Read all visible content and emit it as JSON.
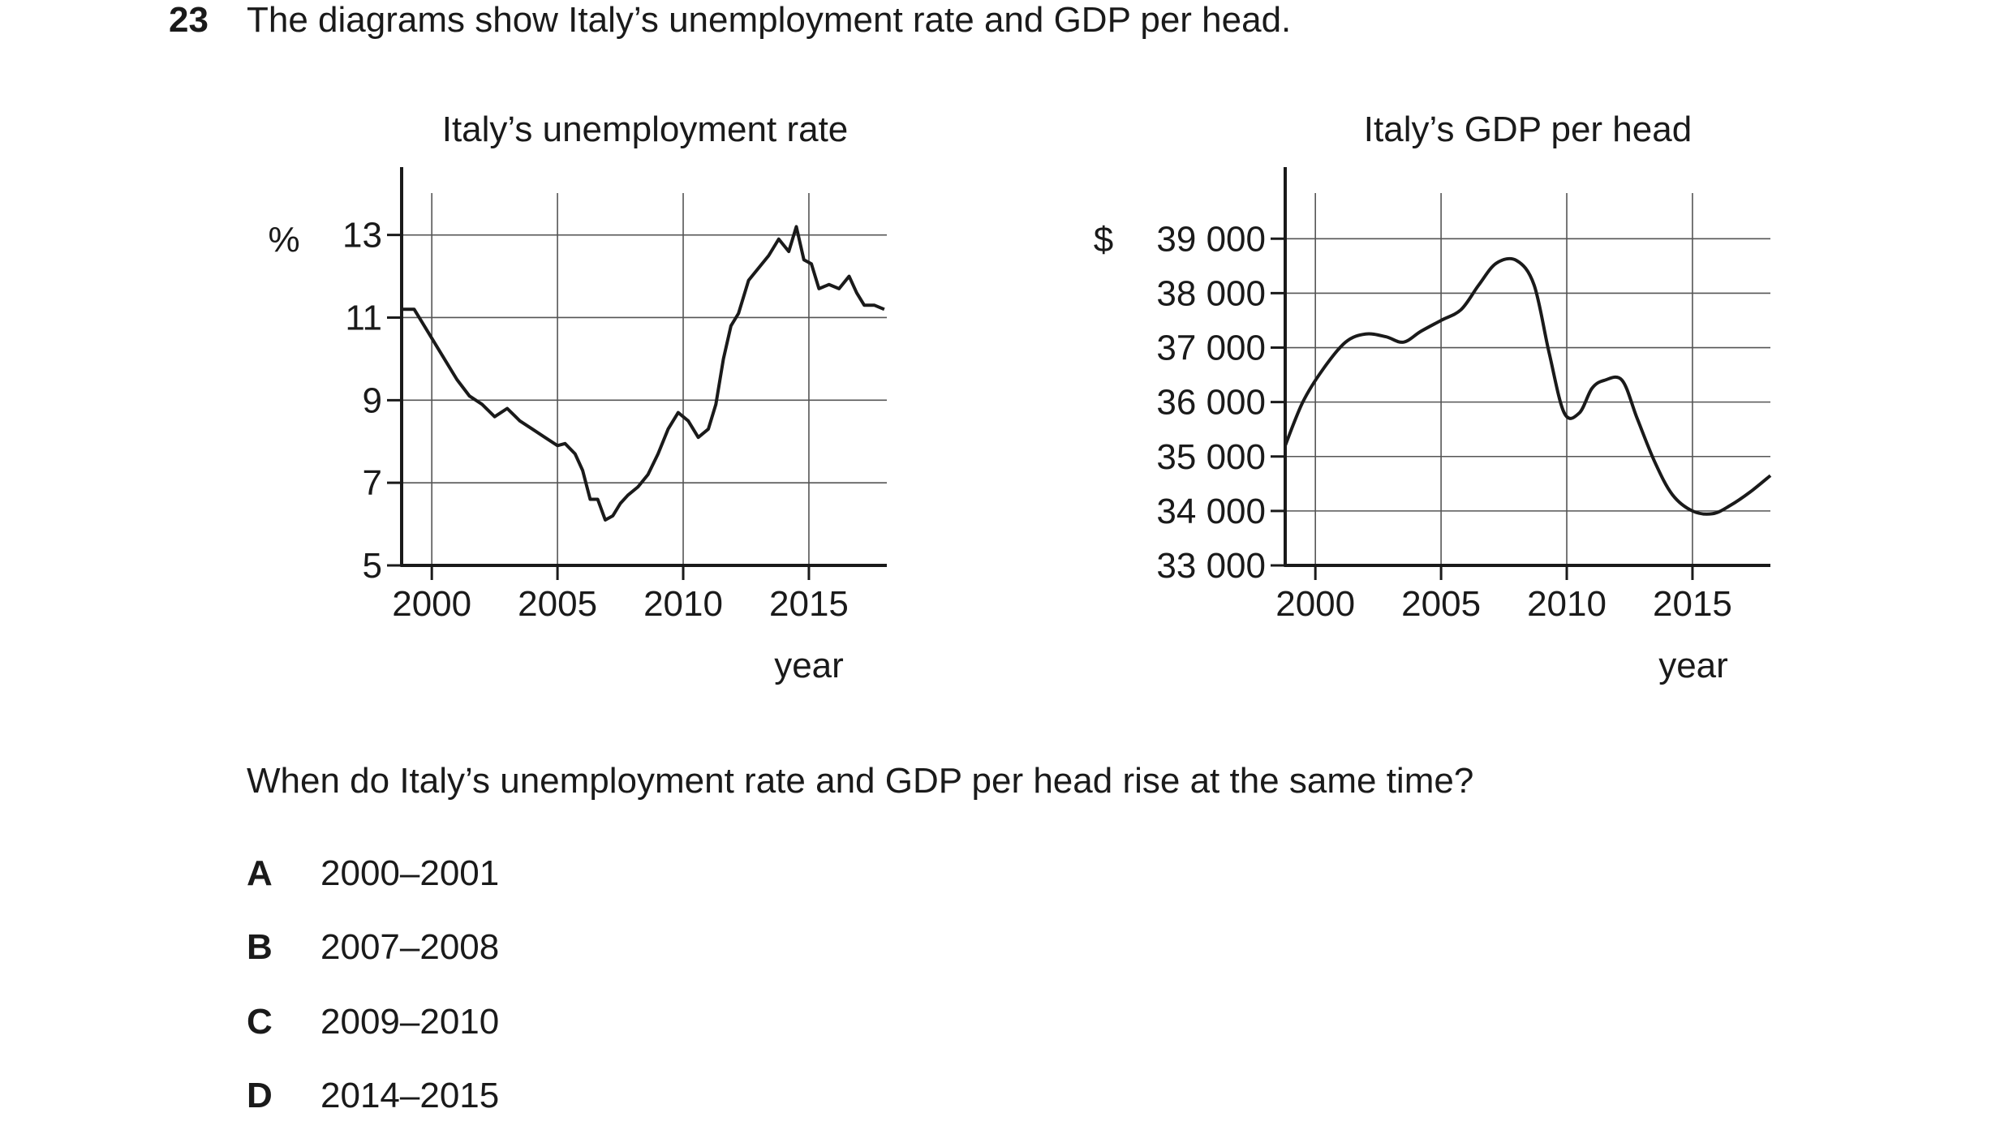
{
  "question": {
    "number": "23",
    "stem": "The diagrams show Italy’s unemployment rate and GDP per head.",
    "prompt": "When do Italy’s unemployment rate and GDP per head rise at the same time?",
    "options": [
      {
        "letter": "A",
        "text": "2000–2001"
      },
      {
        "letter": "B",
        "text": "2007–2008"
      },
      {
        "letter": "C",
        "text": "2009–2010"
      },
      {
        "letter": "D",
        "text": "2014–2015"
      }
    ]
  },
  "chart_data": [
    {
      "type": "line",
      "title": "Italy’s unemployment rate",
      "ylabel": "%",
      "xlabel": "year",
      "xlim": [
        1998.8,
        2018.1
      ],
      "ylim": [
        5,
        13.7
      ],
      "xticks": [
        2000,
        2005,
        2010,
        2015
      ],
      "yticks": [
        5,
        7,
        9,
        11,
        13
      ],
      "grid": true,
      "series": [
        {
          "x": [
            1998.8,
            1999.3,
            1999.6,
            2000.0,
            2000.5,
            2001.0,
            2001.5,
            2002.0,
            2002.5,
            2003.0,
            2003.5,
            2004.0,
            2004.5,
            2005.0,
            2005.3,
            2005.7,
            2006.0,
            2006.3,
            2006.6,
            2006.9,
            2007.2,
            2007.5,
            2007.8,
            2008.2,
            2008.6,
            2009.0,
            2009.4,
            2009.8,
            2010.2,
            2010.6,
            2011.0,
            2011.3,
            2011.6,
            2011.9,
            2012.2,
            2012.6,
            2013.0,
            2013.4,
            2013.8,
            2014.2,
            2014.5,
            2014.8,
            2015.1,
            2015.4,
            2015.8,
            2016.2,
            2016.6,
            2016.9,
            2017.2,
            2017.6,
            2018.0
          ],
          "values": [
            11.2,
            11.2,
            10.9,
            10.5,
            10.0,
            9.5,
            9.1,
            8.9,
            8.6,
            8.8,
            8.5,
            8.3,
            8.1,
            7.9,
            7.95,
            7.7,
            7.3,
            6.6,
            6.6,
            6.1,
            6.2,
            6.5,
            6.7,
            6.9,
            7.2,
            7.7,
            8.3,
            8.7,
            8.5,
            8.1,
            8.3,
            8.9,
            10.0,
            10.8,
            11.1,
            11.9,
            12.2,
            12.5,
            12.9,
            12.6,
            13.2,
            12.4,
            12.3,
            11.7,
            11.8,
            11.7,
            12.0,
            11.6,
            11.3,
            11.3,
            11.2
          ]
        }
      ]
    },
    {
      "type": "line",
      "title": "Italy’s GDP per head",
      "ylabel": "$",
      "xlabel": "year",
      "xlim": [
        1998.8,
        2018.1
      ],
      "ylim": [
        33000,
        39600
      ],
      "xticks": [
        2000,
        2005,
        2010,
        2015
      ],
      "xtick_labels": [
        "2000",
        "2005",
        "2010",
        "2015"
      ],
      "yticks": [
        33000,
        34000,
        35000,
        36000,
        37000,
        38000,
        39000
      ],
      "ytick_labels": [
        "33 000",
        "34 000",
        "35 000",
        "36 000",
        "37 000",
        "38 000",
        "39 000"
      ],
      "grid": true,
      "series": [
        {
          "x": [
            1998.8,
            1999.5,
            2000.3,
            2001.2,
            2002.0,
            2002.8,
            2003.5,
            2004.2,
            2005.0,
            2005.8,
            2006.5,
            2007.2,
            2008.0,
            2008.7,
            2009.3,
            2009.9,
            2010.5,
            2011.0,
            2011.5,
            2012.2,
            2012.8,
            2013.5,
            2014.2,
            2015.0,
            2015.8,
            2016.5,
            2017.3,
            2018.1
          ],
          "values": [
            35200,
            36000,
            36600,
            37100,
            37250,
            37200,
            37100,
            37300,
            37500,
            37700,
            38150,
            38550,
            38600,
            38150,
            36900,
            35800,
            35800,
            36250,
            36400,
            36400,
            35700,
            34900,
            34300,
            34000,
            33950,
            34100,
            34350,
            34650
          ]
        }
      ]
    }
  ]
}
